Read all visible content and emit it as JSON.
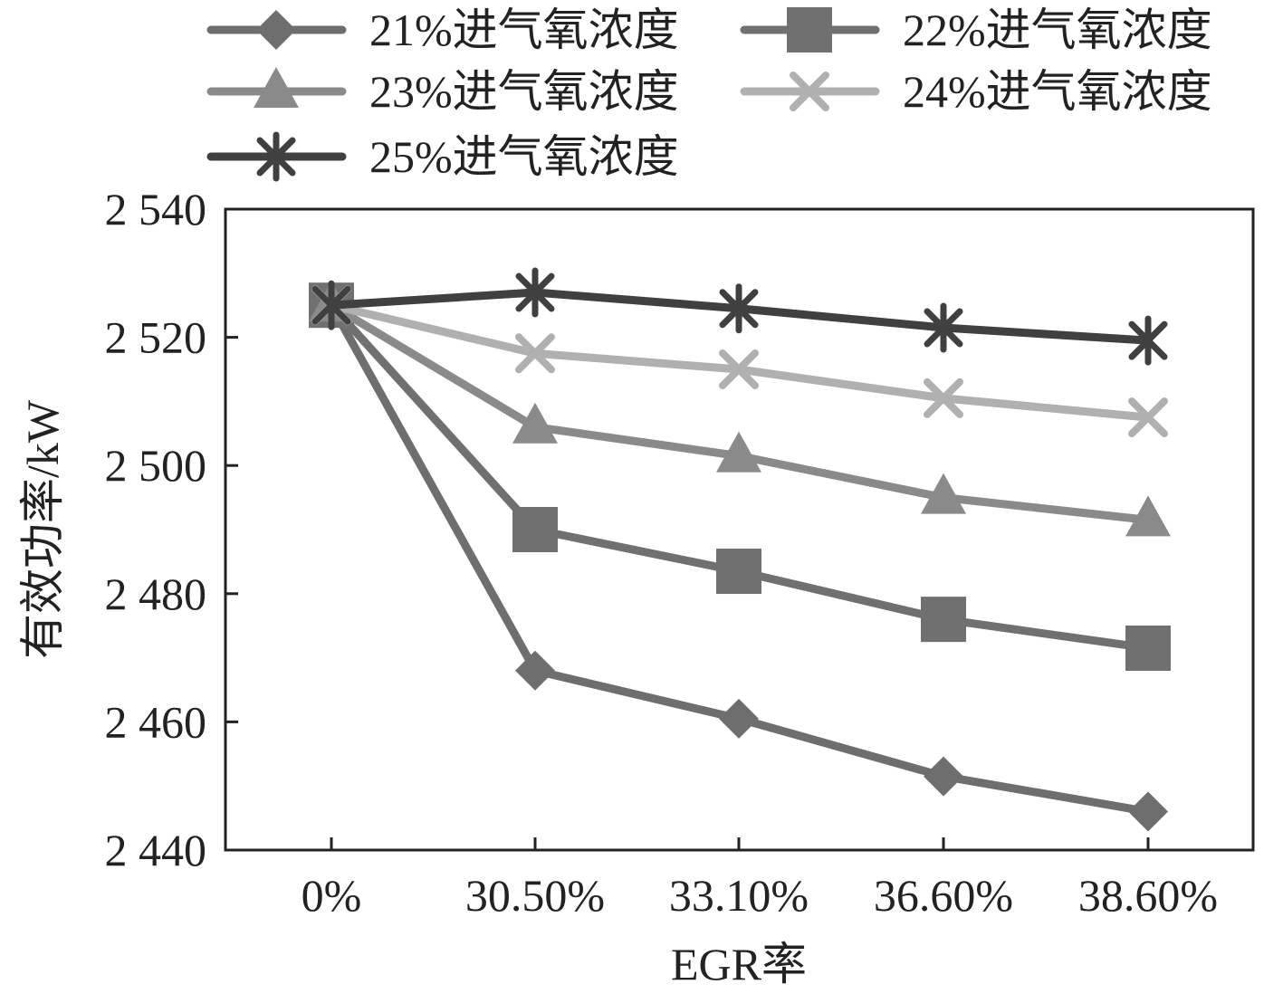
{
  "chart_data": {
    "type": "line",
    "categories": [
      "0%",
      "30.50%",
      "33.10%",
      "36.60%",
      "38.60%"
    ],
    "series": [
      {
        "name": "21%进气氧浓度",
        "values": [
          2525,
          2468,
          2460.5,
          2451.5,
          2446
        ],
        "color": "#6e6e6e",
        "marker": "diamond"
      },
      {
        "name": "22%进气氧浓度",
        "values": [
          2525,
          2490,
          2483.5,
          2476,
          2471.5
        ],
        "color": "#707070",
        "marker": "square"
      },
      {
        "name": "23%进气氧浓度",
        "values": [
          2525,
          2506,
          2501.5,
          2495,
          2491.5
        ],
        "color": "#8a8a8a",
        "marker": "triangle"
      },
      {
        "name": "24%进气氧浓度",
        "values": [
          2525,
          2517.5,
          2515,
          2510.5,
          2507.5
        ],
        "color": "#b0b0b0",
        "marker": "x"
      },
      {
        "name": "25%进气氧浓度",
        "values": [
          2525,
          2527,
          2524.5,
          2521.5,
          2519.5
        ],
        "color": "#404040",
        "marker": "star"
      }
    ],
    "xlabel": "EGR率",
    "ylabel": "有效功率/kW",
    "ylim": [
      2440,
      2540
    ],
    "yticks": [
      2440,
      2460,
      2480,
      2500,
      2520,
      2540
    ],
    "ytick_labels": [
      "2 440",
      "2 460",
      "2 480",
      "2 500",
      "2 520",
      "2 540"
    ],
    "grid": false,
    "legend_position": "top"
  }
}
